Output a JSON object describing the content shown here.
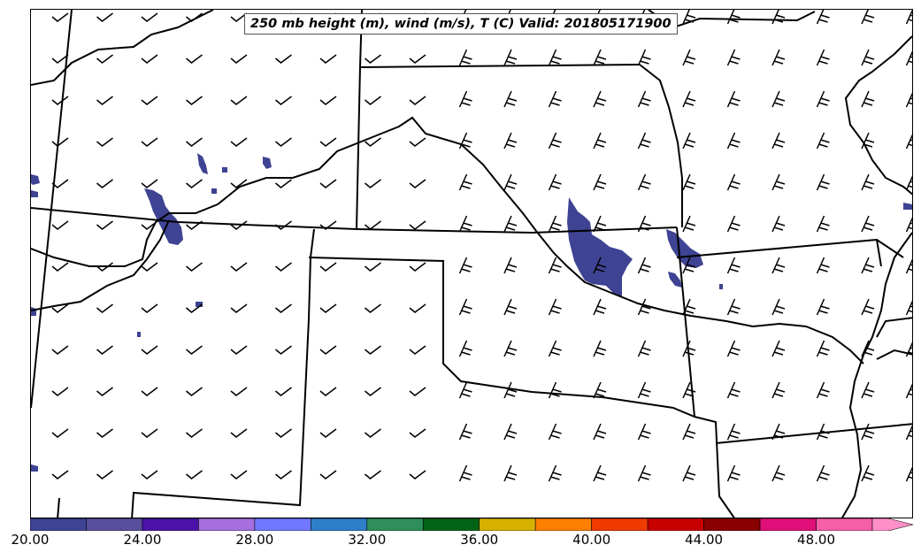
{
  "title": "250 mb height (m), wind (m/s), T (C) Valid: 201805171900",
  "colorbar": {
    "min": 20,
    "max": 52,
    "extend": "max",
    "bins": [
      {
        "from": 20,
        "to": 22,
        "color": "#3e4393"
      },
      {
        "from": 22,
        "to": 24,
        "color": "#5a4f9c"
      },
      {
        "from": 24,
        "to": 26,
        "color": "#4a12a6"
      },
      {
        "from": 26,
        "to": 28,
        "color": "#a56fe0"
      },
      {
        "from": 28,
        "to": 30,
        "color": "#6f78ff"
      },
      {
        "from": 30,
        "to": 32,
        "color": "#2e7fc9"
      },
      {
        "from": 32,
        "to": 34,
        "color": "#2f8f5c"
      },
      {
        "from": 34,
        "to": 36,
        "color": "#006414"
      },
      {
        "from": 36,
        "to": 38,
        "color": "#d6b100"
      },
      {
        "from": 38,
        "to": 40,
        "color": "#ff7f00"
      },
      {
        "from": 40,
        "to": 42,
        "color": "#ef3a00"
      },
      {
        "from": 42,
        "to": 44,
        "color": "#c80000"
      },
      {
        "from": 44,
        "to": 46,
        "color": "#8a0000"
      },
      {
        "from": 46,
        "to": 48,
        "color": "#e0107a"
      },
      {
        "from": 48,
        "to": 50,
        "color": "#f65eaa"
      },
      {
        "from": 50,
        "to": 52,
        "color": "#ff8fc6"
      }
    ],
    "tick_labels": [
      "20.00",
      "24.00",
      "28.00",
      "32.00",
      "36.00",
      "40.00",
      "44.00",
      "48.00"
    ]
  },
  "shading_color": "#3e4393",
  "line_color": "#000000"
}
